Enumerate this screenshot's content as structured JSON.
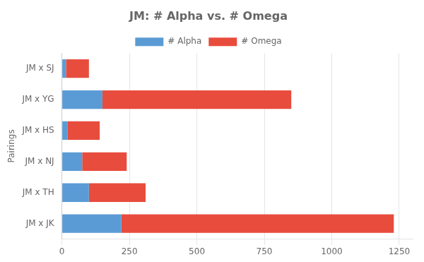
{
  "chart_data": {
    "type": "bar",
    "orientation": "horizontal",
    "stacked": true,
    "title": "JM: # Alpha vs. # Omega",
    "ylabel": "Pairings",
    "categories": [
      "JM x JK",
      "JM x TH",
      "JM x NJ",
      "JM x HS",
      "JM x YG",
      "JM x SJ"
    ],
    "series": [
      {
        "name": "# Alpha",
        "color": "#5b9bd5",
        "values": [
          220,
          100,
          75,
          20,
          150,
          15
        ]
      },
      {
        "name": "# Omega",
        "color": "#e84c3d",
        "values": [
          1010,
          210,
          165,
          120,
          700,
          85
        ]
      }
    ],
    "xlim": [
      0,
      1300
    ],
    "xticks": [
      0,
      250,
      500,
      750,
      1000,
      1250
    ],
    "grid": true,
    "legend": "top"
  }
}
